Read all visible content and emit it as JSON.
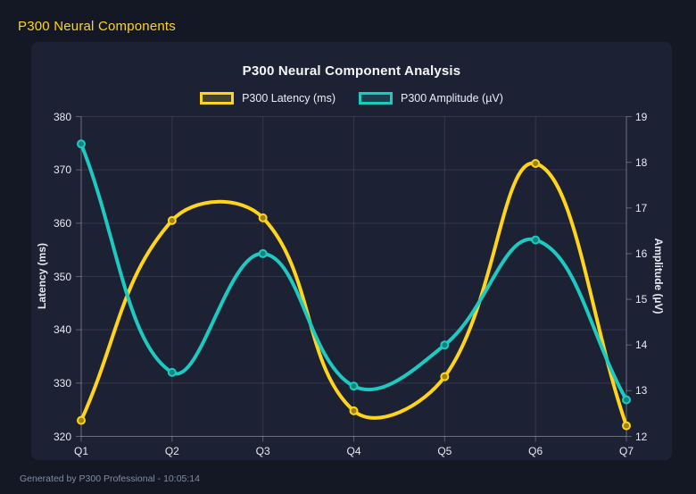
{
  "header": {
    "title": "P300 Neural Components"
  },
  "footer": {
    "text": "Generated by P300 Professional - 10:05:14"
  },
  "colors": {
    "background": "#141824",
    "panel": "#1d2134",
    "header_accent": "#ffd41d",
    "grid": "rgba(255,255,255,0.10)",
    "axis_border": "rgba(255,255,255,0.28)",
    "tick_text": "#e7eaf2"
  },
  "chart_data": {
    "type": "line",
    "title": "P300 Neural Component Analysis",
    "categories": [
      "Q1",
      "Q2",
      "Q3",
      "Q4",
      "Q5",
      "Q6",
      "Q7"
    ],
    "series": [
      {
        "name": "P300 Latency (ms)",
        "axis": "left",
        "color": "#ffd41d",
        "marker_fill": "#9a830f",
        "values": [
          323,
          360.5,
          361,
          324.8,
          331.2,
          371.2,
          322
        ]
      },
      {
        "name": "P300 Amplitude (µV)",
        "axis": "right",
        "color": "#1ec9c0",
        "marker_fill": "#0f837d",
        "values": [
          18.4,
          13.4,
          16.0,
          13.1,
          14.0,
          16.3,
          12.8
        ]
      }
    ],
    "left_axis": {
      "label": "Latency (ms)",
      "min": 320,
      "max": 380,
      "ticks": [
        320,
        330,
        340,
        350,
        360,
        370,
        380
      ]
    },
    "right_axis": {
      "label": "Amplitude (µV)",
      "min": 12,
      "max": 19,
      "ticks": [
        12,
        13,
        14,
        15,
        16,
        17,
        18,
        19
      ]
    },
    "grid": true,
    "legend_position": "top",
    "line_tension": 0.4
  }
}
